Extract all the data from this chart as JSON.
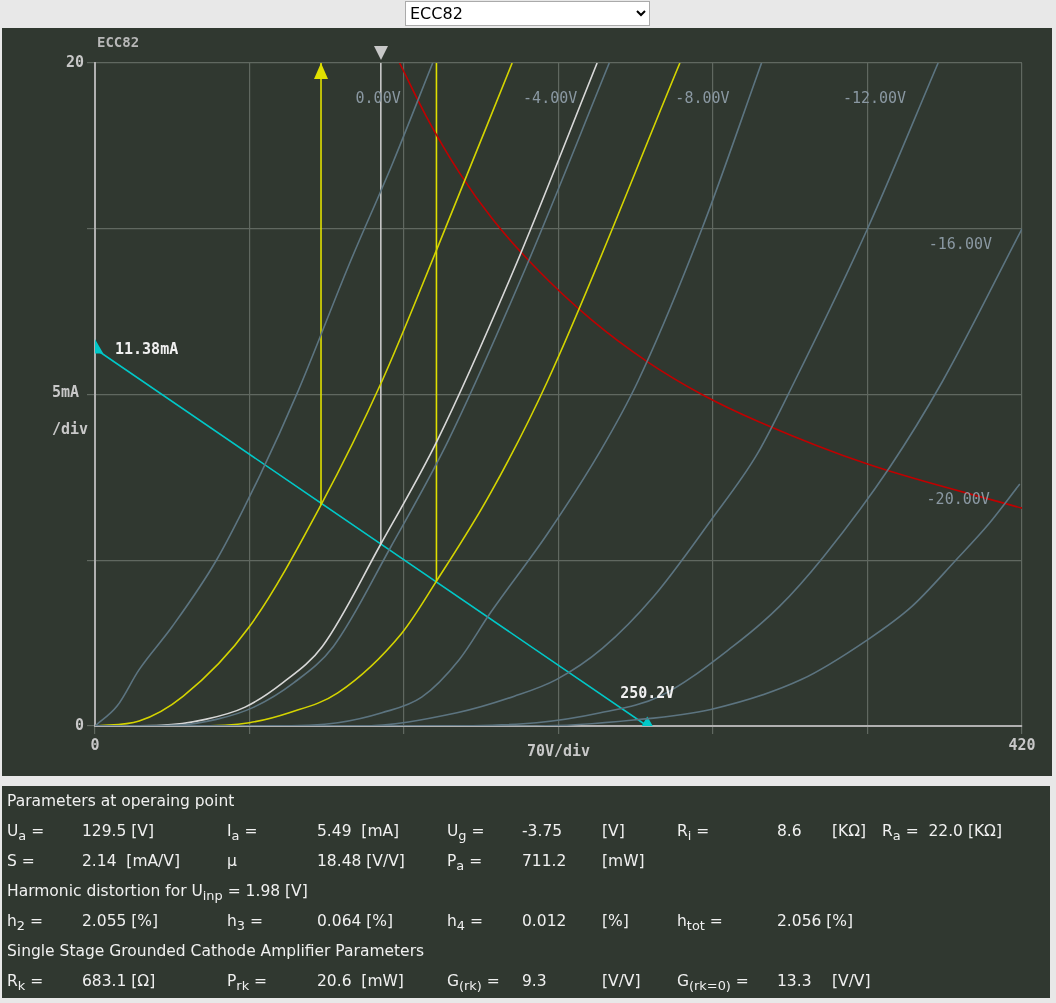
{
  "chart_data": {
    "type": "line",
    "title": "ECC82",
    "xlabel": "70V/div",
    "ylabel": "5mA /div",
    "xlim": [
      0,
      420
    ],
    "xticks": [
      0,
      {
        "value": 70,
        "label": null
      },
      {
        "value": 140,
        "label": null
      },
      {
        "value": 210,
        "label": null
      },
      {
        "value": 280,
        "label": null
      },
      {
        "value": 350,
        "label": null
      },
      420
    ],
    "ylim": [
      0,
      20
    ],
    "yticks": [
      0,
      {
        "value": 5,
        "label": null
      },
      {
        "value": 10,
        "label": null
      },
      {
        "value": 15,
        "label": null
      },
      20
    ],
    "grid": true,
    "marker": "none",
    "series": [
      {
        "name": "0.00V",
        "color": "#5c7480",
        "x": [
          0,
          10,
          20,
          35,
          55,
          75,
          92,
          115,
          135,
          153
        ],
        "values": [
          0,
          0.6,
          1.7,
          3.0,
          5.0,
          7.6,
          10.1,
          13.9,
          17.0,
          20
        ]
      },
      {
        "name": "-4.00V",
        "color": "#5c7480",
        "x": [
          0,
          35,
          55,
          72,
          90,
          108,
          134,
          160,
          195,
          233
        ],
        "values": [
          0,
          0.02,
          0.2,
          0.57,
          1.3,
          2.4,
          5.4,
          8.6,
          13.8,
          20
        ]
      },
      {
        "name": "-8.00V",
        "color": "#5c7480",
        "x": [
          0,
          80,
          110,
          130,
          148,
          165,
          179,
          205,
          229,
          246,
          275,
          302
        ],
        "values": [
          0,
          0,
          0.1,
          0.4,
          0.87,
          2.0,
          3.4,
          5.8,
          8.3,
          10.4,
          15,
          20
        ]
      },
      {
        "name": "-12.00V",
        "color": "#5c7480",
        "x": [
          0,
          120,
          164,
          190,
          209,
          230,
          253,
          279,
          300,
          317,
          350,
          382
        ],
        "values": [
          0,
          0,
          0.4,
          0.9,
          1.4,
          2.35,
          3.9,
          6.2,
          8.2,
          10.4,
          15,
          20
        ]
      },
      {
        "name": "-16.00V",
        "color": "#5c7480",
        "x": [
          0,
          150,
          200,
          229,
          256,
          289,
          310,
          330,
          360,
          384,
          420
        ],
        "values": [
          0,
          0,
          0.1,
          0.4,
          0.9,
          2.4,
          3.6,
          5.1,
          7.8,
          10.4,
          15.0
        ]
      },
      {
        "name": "-20.00V",
        "color": "#5c7480",
        "x": [
          0,
          200,
          244,
          279,
          320,
          350,
          370,
          390,
          405,
          419
        ],
        "values": [
          0,
          0,
          0.18,
          0.5,
          1.4,
          2.6,
          3.6,
          5.0,
          6.1,
          7.3
        ]
      },
      {
        "color": "#d4d400",
        "x": [
          0,
          20,
          40,
          70,
          102.4,
          130,
          155,
          189
        ],
        "values": [
          0,
          0.15,
          0.9,
          3.0,
          6.67,
          10.4,
          14.4,
          20
        ]
      },
      {
        "color": "#d8d8d8",
        "x": [
          0,
          30,
          50,
          68,
          85,
          103,
          129.5,
          155,
          190,
          227.5
        ],
        "values": [
          0,
          0.02,
          0.2,
          0.57,
          1.3,
          2.4,
          5.49,
          8.6,
          13.8,
          20
        ]
      },
      {
        "color": "#d4d400",
        "x": [
          0,
          45,
          70,
          88,
          110,
          139,
          154.7,
          179,
          205,
          265
        ],
        "values": [
          0,
          0,
          0.1,
          0.4,
          1.0,
          2.8,
          4.37,
          7.0,
          10.4,
          20
        ]
      },
      {
        "color": "#c00000",
        "x": [
          138,
          150,
          165,
          180,
          200,
          225,
          250,
          275,
          300,
          350,
          420
        ],
        "values": [
          20,
          18.4,
          16.7,
          15.3,
          13.8,
          12.25,
          11.0,
          10.0,
          9.2,
          7.9,
          6.57
        ]
      },
      {
        "color": "#e0e000",
        "x": [
          102.4,
          102.4
        ],
        "values": [
          6.67,
          20
        ]
      },
      {
        "color": "#c8c8c8",
        "x": [
          129.5,
          129.5
        ],
        "values": [
          5.49,
          20
        ]
      },
      {
        "color": "#e0e000",
        "x": [
          154.7,
          154.7
        ],
        "values": [
          4.37,
          20
        ]
      },
      {
        "color": "#00c8c8",
        "marker": "triangle",
        "x": [
          0,
          250.2
        ],
        "values": [
          11.38,
          0
        ]
      }
    ],
    "annotations": [
      {
        "text": "11.38mA",
        "x": 0,
        "y": 11.38
      },
      {
        "text": "250.2V",
        "x": 250.2,
        "y": 0
      },
      "Parameters at operaing point",
      "U$_{a}$ =\t129.5 [V]\tI$_{a}$ =\t5.49  [mA]\tU$_{g}$ =\t-3.75\t[V]\tR$_{i}$ =\t8.6\t[KΩ]\tR$_{a}$ =  22.0 [KΩ]",
      "S =\t2.14  [mA/V]\tμ\t18.48 [V/V]\tP$_{a}$ =\t711.2\t[mW]",
      "Harmonic distortion for U$_{inp}$ = 1.98 [V]",
      "h$_{2}$ =\t2.055 [%]\th$_{3}$ =\t0.064 [%]\th$_{4}$ =\t0.012\t[%]\th$_{tot}$ =\t2.056 [%]",
      "Single Stage Grounded Cathode Amplifier Parameters",
      "R$_{k}$ =\t683.1 [Ω]\tP$_{rk}$ =\t20.6  [mW]\tG$_{(rk)}$ =\t9.3\t[V/V]\tG$_{(rk=0)}$ =\t13.3\t[V/V]"
    ]
  }
}
